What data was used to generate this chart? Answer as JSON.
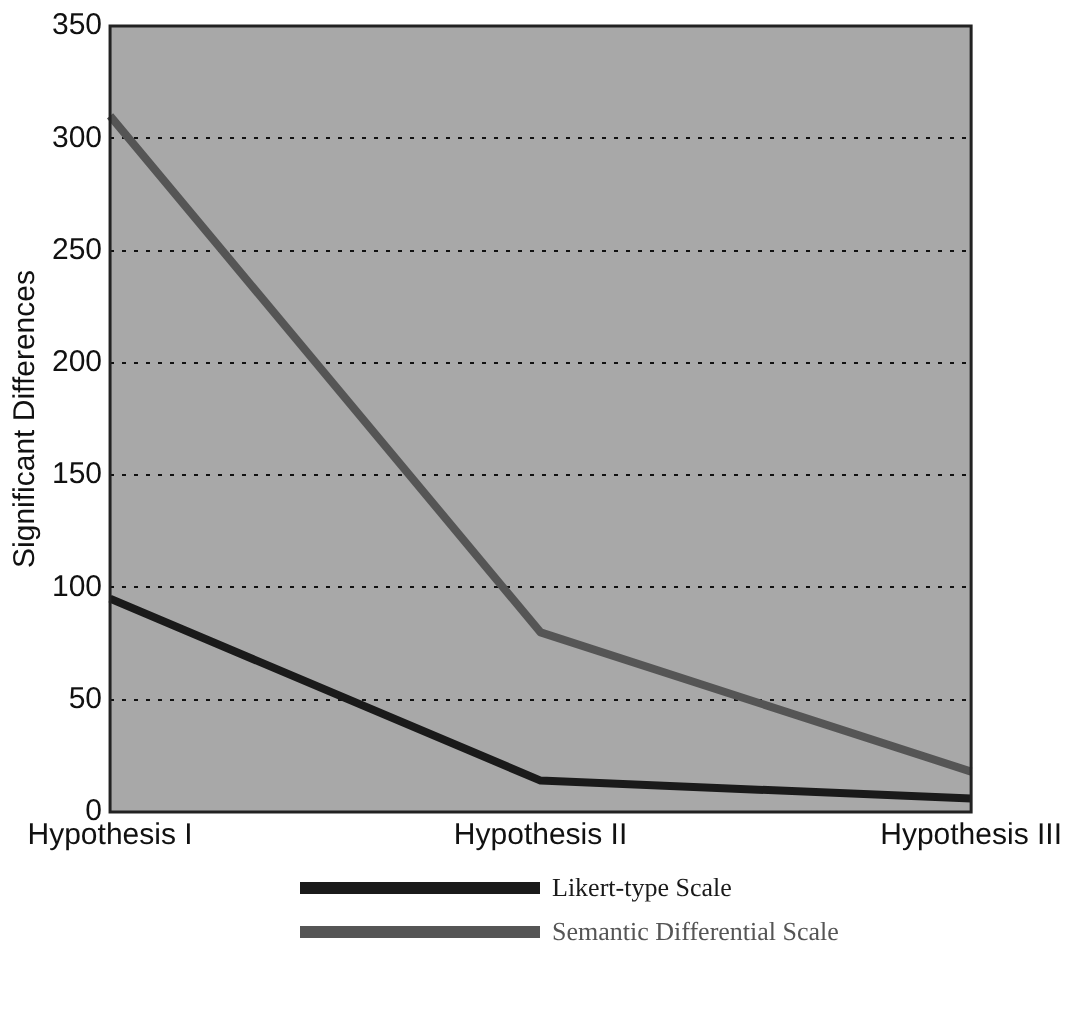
{
  "chart_data": {
    "type": "line",
    "ylabel": "Significant Differences",
    "categories": [
      "Hypothesis I",
      "Hypothesis II",
      "Hypothesis III"
    ],
    "series": [
      {
        "name": "Likert-type Scale",
        "color": "#1a1a1a",
        "values": [
          95,
          14,
          6
        ]
      },
      {
        "name": "Semantic Differential Scale",
        "color": "#555555",
        "values": [
          310,
          80,
          18
        ]
      }
    ],
    "ylim": [
      0,
      350
    ],
    "yticks": [
      0,
      50,
      100,
      150,
      200,
      250,
      300,
      350
    ],
    "grid": "y",
    "legend": "bottom",
    "marker": "none",
    "line_style": "solid"
  }
}
